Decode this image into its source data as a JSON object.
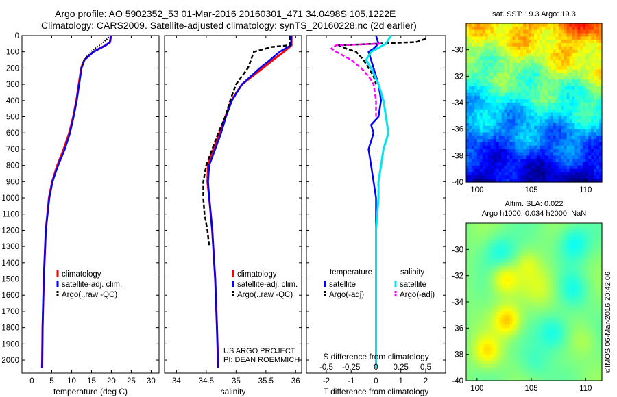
{
  "header": {
    "line1": "Argo profile: AO 5902352_53 01-Mar-2016 20160301_471 34.0498S 105.1222E",
    "line2": "Climatology: CARS2009. Satellite-adjusted climatology: synTS_20160228.nc (2d earlier)"
  },
  "colors": {
    "climatology": "#ff0000",
    "satellite": "#0000ff",
    "argo": "#000000",
    "salinity_sat": "#00e5ee",
    "salinity_argo": "#ff00ff"
  },
  "footnote": {
    "project": "US ARGO PROJECT",
    "pi": "PI: DEAN ROEMMICH",
    "stamp": "©IMOS 06-Mar-2016 20:42:06"
  },
  "chart_data": [
    {
      "id": "temperature",
      "type": "line",
      "xlabel": "temperature (deg C)",
      "ylabel": "",
      "xlim": [
        -2.5,
        32
      ],
      "ylim": [
        2080,
        0
      ],
      "xticks": [
        0,
        5,
        10,
        15,
        20,
        25,
        30
      ],
      "yticks": [
        0,
        100,
        200,
        300,
        400,
        500,
        600,
        700,
        800,
        900,
        1000,
        1100,
        1200,
        1300,
        1400,
        1500,
        1600,
        1700,
        1800,
        1900,
        2000
      ],
      "legend": {
        "position": "lower-center",
        "entries": [
          "climatology",
          "satellite-adj. clim.",
          "Argo(..raw -QC)"
        ]
      },
      "series": [
        {
          "name": "climatology",
          "color": "#ff0000",
          "depth": [
            0,
            40,
            60,
            80,
            100,
            150,
            200,
            300,
            400,
            500,
            600,
            700,
            800,
            900,
            1000,
            1200,
            1500,
            1800,
            2000,
            2050
          ],
          "values": [
            19.9,
            19.7,
            18.6,
            17.0,
            15.5,
            13.2,
            12.4,
            11.8,
            11.2,
            10.4,
            9.4,
            8.0,
            6.4,
            5.1,
            4.3,
            3.5,
            3.0,
            2.7,
            2.6,
            2.55
          ]
        },
        {
          "name": "satellite-adj. clim.",
          "color": "#0000ff",
          "depth": [
            0,
            40,
            60,
            80,
            100,
            150,
            200,
            300,
            400,
            500,
            600,
            700,
            800,
            900,
            1000,
            1200,
            1500,
            1800,
            2000,
            2050
          ],
          "values": [
            19.9,
            19.6,
            18.6,
            17.0,
            15.5,
            13.2,
            12.5,
            11.9,
            11.3,
            10.5,
            9.6,
            8.3,
            6.6,
            5.2,
            4.4,
            3.5,
            3.0,
            2.7,
            2.6,
            2.55
          ]
        },
        {
          "name": "Argo(..raw -QC)",
          "color": "#000000",
          "depth": [
            10,
            30,
            50,
            70,
            90,
            110,
            130,
            150,
            170,
            190
          ],
          "values": [
            19.4,
            18.5,
            17.6,
            16.4,
            15.3,
            14.5,
            13.8,
            13.3,
            13.0,
            12.6
          ]
        }
      ]
    },
    {
      "id": "salinity",
      "type": "line",
      "xlabel": "salinity",
      "ylabel": "",
      "xlim": [
        33.8,
        36.1
      ],
      "ylim": [
        2080,
        0
      ],
      "xticks": [
        34,
        34.5,
        35,
        35.5,
        36
      ],
      "xticklabels": [
        "34",
        "34.5",
        "35",
        "35.5",
        "36"
      ],
      "legend": {
        "position": "lower-right",
        "entries": [
          "climatology",
          "satellite-adj. clim.",
          "Argo(..raw -QC)"
        ]
      },
      "series": [
        {
          "name": "climatology",
          "color": "#ff0000",
          "depth": [
            0,
            60,
            100,
            150,
            200,
            300,
            400,
            500,
            600,
            700,
            800,
            900,
            1000,
            1200,
            1500,
            1800,
            2050
          ],
          "values": [
            35.93,
            35.93,
            35.8,
            35.62,
            35.45,
            35.1,
            34.92,
            34.82,
            34.72,
            34.62,
            34.53,
            34.52,
            34.55,
            34.6,
            34.65,
            34.68,
            34.7
          ]
        },
        {
          "name": "satellite-adj. clim.",
          "color": "#0000ff",
          "depth": [
            0,
            60,
            100,
            150,
            200,
            300,
            400,
            500,
            600,
            700,
            800,
            900,
            1000,
            1200,
            1500,
            1800,
            2050
          ],
          "values": [
            35.93,
            35.92,
            35.73,
            35.57,
            35.4,
            35.1,
            34.93,
            34.83,
            34.75,
            34.65,
            34.55,
            34.53,
            34.55,
            34.6,
            34.65,
            34.68,
            34.7
          ]
        },
        {
          "name": "Argo(..raw -QC)",
          "color": "#000000",
          "depth": [
            0,
            60,
            70,
            90,
            100,
            150,
            200,
            300,
            400,
            500,
            600,
            700,
            800,
            900,
            1000,
            1100,
            1200,
            1300
          ],
          "values": [
            35.9,
            35.9,
            35.6,
            35.4,
            35.3,
            35.25,
            35.2,
            35.0,
            34.9,
            34.82,
            34.7,
            34.6,
            34.5,
            34.45,
            34.45,
            34.47,
            34.52,
            34.55
          ]
        }
      ]
    },
    {
      "id": "difference",
      "type": "line",
      "xlabel": "T difference from climatology",
      "xlabel_top": "S difference from climatology",
      "xlim": [
        -2.8,
        2.8
      ],
      "ylim": [
        2080,
        0
      ],
      "xticks": [
        -2,
        -1,
        0,
        1,
        2
      ],
      "xticklabels": [
        "-2",
        "-1",
        "0",
        "1",
        "2"
      ],
      "sticks": [
        -2,
        -1,
        0,
        1,
        2
      ],
      "sticklabels": [
        "-0.5",
        "-0.25",
        "0",
        "0.25",
        "0.5"
      ],
      "legend": {
        "position": "lower",
        "temperature_title": "temperature",
        "salinity_title": "salinity",
        "entries": [
          "satellite",
          "Argo(-adj)",
          "satellite",
          "Argo(-adj)"
        ]
      },
      "series": [
        {
          "name": "temperature satellite",
          "color": "#0000ff",
          "depth": [
            0,
            50,
            80,
            100,
            150,
            200,
            300,
            400,
            500,
            550,
            600,
            650,
            700,
            800,
            900,
            1000,
            1200,
            1500,
            2050
          ],
          "values": [
            0.0,
            0.1,
            -0.1,
            -0.3,
            -0.2,
            -0.1,
            0.1,
            0.2,
            0.1,
            -0.2,
            -0.1,
            -0.2,
            -0.3,
            -0.2,
            -0.1,
            0.0,
            0.0,
            0.0,
            0.0
          ]
        },
        {
          "name": "temperature Argo(-adj)",
          "color": "#000000",
          "depth": [
            20,
            40,
            60,
            80,
            100,
            150,
            200,
            250,
            300
          ],
          "values": [
            2.0,
            1.6,
            -1.5,
            -1.2,
            -0.8,
            -0.5,
            -0.3,
            -0.1,
            0.0
          ]
        },
        {
          "name": "salinity satellite",
          "color": "#00e5ee",
          "depth": [
            0,
            50,
            100,
            150,
            200,
            300,
            400,
            500,
            600,
            700,
            800,
            900,
            1000,
            1200,
            1500,
            2050
          ],
          "values": [
            0.6,
            0.4,
            -0.2,
            -0.4,
            -0.2,
            0.1,
            0.3,
            0.4,
            0.5,
            0.3,
            0.2,
            0.1,
            0.1,
            0.0,
            0.0,
            0.0
          ]
        },
        {
          "name": "salinity Argo(-adj)",
          "color": "#ff00ff",
          "depth": [
            50,
            60,
            80,
            100,
            150,
            200,
            250,
            300,
            400,
            500
          ],
          "values": [
            0.2,
            -1.6,
            -1.8,
            -1.6,
            -1.0,
            -0.6,
            -0.3,
            -0.1,
            0.0,
            0.0
          ]
        }
      ]
    },
    {
      "id": "sst_map",
      "type": "heatmap",
      "title": "sat. SST: 19.3 Argo: 19.3",
      "xlim": [
        99,
        111.5
      ],
      "ylim": [
        -40,
        -28
      ],
      "xticks": [
        100,
        105,
        110
      ],
      "yticks": [
        -30,
        -32,
        -34,
        -36,
        -38,
        -40
      ]
    },
    {
      "id": "sla_map",
      "type": "heatmap",
      "title": "Altim. SLA: 0.022",
      "subtitle": "Argo h1000: 0.034 h2000: NaN",
      "xlim": [
        99,
        111.5
      ],
      "ylim": [
        -40,
        -28
      ],
      "xticks": [
        100,
        105,
        110
      ],
      "yticks": [
        -30,
        -32,
        -34,
        -36,
        -38,
        -40
      ]
    }
  ]
}
